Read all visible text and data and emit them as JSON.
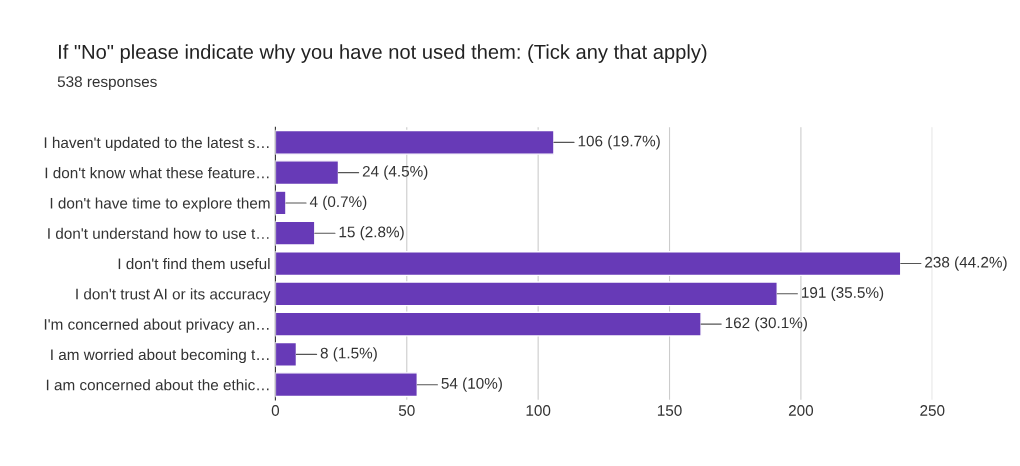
{
  "chart_data": {
    "type": "bar",
    "orientation": "horizontal",
    "title": "If \"No\" please indicate why you have not used them: (Tick any that apply)",
    "subtitle": "538 responses",
    "categories": [
      "I haven't updated to the latest s…",
      "I don't know what these feature…",
      "I don't have time to explore them",
      "I don't understand how to use t…",
      "I don't find them useful",
      "I don't trust AI or its accuracy",
      "I'm concerned about privacy an…",
      "I am worried about becoming t…",
      "I am concerned about the ethic…"
    ],
    "values": [
      106,
      24,
      4,
      15,
      238,
      191,
      162,
      8,
      54
    ],
    "value_labels": [
      "106 (19.7%)",
      "24 (4.5%)",
      "4 (0.7%)",
      "15 (2.8%)",
      "238 (44.2%)",
      "191 (35.5%)",
      "162 (30.1%)",
      "8 (1.5%)",
      "54 (10%)"
    ],
    "color": "#673ab7",
    "xlim": [
      0,
      250
    ],
    "xticks": [
      0,
      50,
      100,
      150,
      200,
      250
    ],
    "grid": "x",
    "legend": false
  }
}
